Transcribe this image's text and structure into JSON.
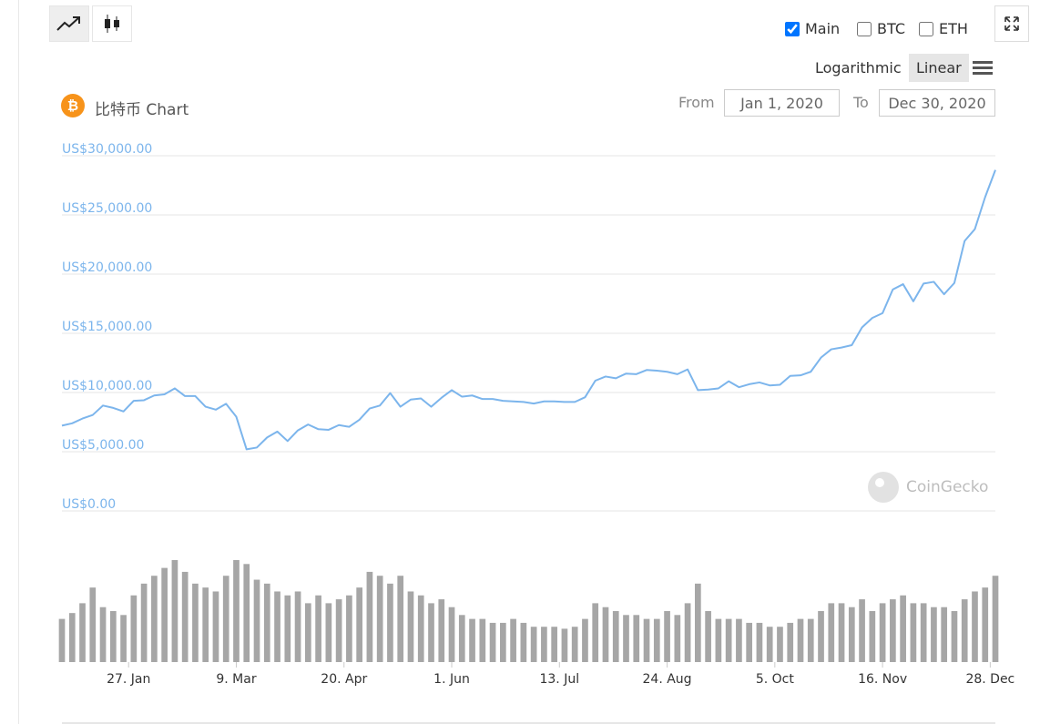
{
  "controls": {
    "checkboxes": [
      {
        "label": "Main",
        "checked": true
      },
      {
        "label": "BTC",
        "checked": false
      },
      {
        "label": "ETH",
        "checked": false
      }
    ],
    "scale_buttons": [
      "Logarithmic",
      "Linear"
    ],
    "active_scale": "Linear",
    "from_label": "From",
    "from_value": "Jan 1, 2020",
    "to_label": "To",
    "to_value": "Dec 30, 2020",
    "watermark": "CoinGecko"
  },
  "chart_data": {
    "type": "line",
    "title": "比特币 Chart",
    "x": [
      "2020-01-01",
      "2020-01-05",
      "2020-01-09",
      "2020-01-13",
      "2020-01-17",
      "2020-01-21",
      "2020-01-25",
      "2020-01-29",
      "2020-02-02",
      "2020-02-06",
      "2020-02-10",
      "2020-02-14",
      "2020-02-18",
      "2020-02-22",
      "2020-02-26",
      "2020-03-01",
      "2020-03-05",
      "2020-03-09",
      "2020-03-13",
      "2020-03-17",
      "2020-03-21",
      "2020-03-25",
      "2020-03-29",
      "2020-04-02",
      "2020-04-06",
      "2020-04-10",
      "2020-04-14",
      "2020-04-18",
      "2020-04-22",
      "2020-04-26",
      "2020-04-30",
      "2020-05-04",
      "2020-05-08",
      "2020-05-12",
      "2020-05-16",
      "2020-05-20",
      "2020-05-24",
      "2020-05-28",
      "2020-06-01",
      "2020-06-05",
      "2020-06-09",
      "2020-06-13",
      "2020-06-17",
      "2020-06-21",
      "2020-06-25",
      "2020-06-29",
      "2020-07-03",
      "2020-07-07",
      "2020-07-11",
      "2020-07-15",
      "2020-07-19",
      "2020-07-23",
      "2020-07-27",
      "2020-07-31",
      "2020-08-04",
      "2020-08-08",
      "2020-08-12",
      "2020-08-16",
      "2020-08-20",
      "2020-08-24",
      "2020-08-28",
      "2020-09-01",
      "2020-09-05",
      "2020-09-09",
      "2020-09-13",
      "2020-09-17",
      "2020-09-21",
      "2020-09-25",
      "2020-09-29",
      "2020-10-03",
      "2020-10-07",
      "2020-10-11",
      "2020-10-15",
      "2020-10-19",
      "2020-10-23",
      "2020-10-27",
      "2020-10-31",
      "2020-11-04",
      "2020-11-08",
      "2020-11-12",
      "2020-11-16",
      "2020-11-20",
      "2020-11-24",
      "2020-11-28",
      "2020-12-02",
      "2020-12-06",
      "2020-12-10",
      "2020-12-14",
      "2020-12-18",
      "2020-12-22",
      "2020-12-26",
      "2020-12-30"
    ],
    "series": [
      {
        "type": "line",
        "color": "#7cb5ec",
        "values": [
          7200,
          7400,
          7800,
          8100,
          8900,
          8700,
          8400,
          9300,
          9350,
          9750,
          9850,
          10350,
          9700,
          9700,
          8800,
          8550,
          9050,
          7950,
          5200,
          5350,
          6200,
          6700,
          5900,
          6800,
          7300,
          6900,
          6850,
          7250,
          7100,
          7700,
          8650,
          8900,
          9950,
          8800,
          9400,
          9500,
          8800,
          9550,
          10200,
          9650,
          9750,
          9450,
          9450,
          9300,
          9250,
          9200,
          9070,
          9250,
          9250,
          9200,
          9200,
          9600,
          11000,
          11350,
          11200,
          11600,
          11550,
          11900,
          11850,
          11750,
          11550,
          11950,
          10200,
          10250,
          10350,
          10950,
          10450,
          10700,
          10850,
          10600,
          10650,
          11400,
          11450,
          11750,
          12950,
          13650,
          13800,
          14000,
          15500,
          16300,
          16700,
          18700,
          19150,
          17700,
          19200,
          19350,
          18300,
          19250,
          22800,
          23800,
          26500,
          28800
        ]
      },
      {
        "type": "column",
        "color": "#a6a6a6",
        "values": [
          22,
          25,
          30,
          38,
          28,
          26,
          24,
          34,
          40,
          44,
          48,
          52,
          46,
          40,
          38,
          36,
          44,
          52,
          50,
          42,
          40,
          36,
          34,
          36,
          30,
          34,
          30,
          32,
          34,
          38,
          46,
          44,
          40,
          44,
          36,
          34,
          30,
          32,
          28,
          24,
          22,
          22,
          20,
          20,
          22,
          20,
          18,
          18,
          18,
          17,
          18,
          22,
          30,
          28,
          26,
          24,
          24,
          22,
          22,
          26,
          24,
          30,
          40,
          26,
          22,
          22,
          22,
          20,
          20,
          18,
          18,
          20,
          22,
          22,
          26,
          30,
          30,
          28,
          32,
          26,
          30,
          32,
          34,
          30,
          30,
          28,
          28,
          26,
          32,
          36,
          38,
          44
        ]
      }
    ],
    "xlim": [
      "2020-01-01",
      "2020-12-30"
    ],
    "xticks": [
      {
        "value": "2020-01-27",
        "label": "27. Jan"
      },
      {
        "value": "2020-03-09",
        "label": "9. Mar"
      },
      {
        "value": "2020-04-20",
        "label": "20. Apr"
      },
      {
        "value": "2020-06-01",
        "label": "1. Jun"
      },
      {
        "value": "2020-07-13",
        "label": "13. Jul"
      },
      {
        "value": "2020-08-24",
        "label": "24. Aug"
      },
      {
        "value": "2020-10-05",
        "label": "5. Oct"
      },
      {
        "value": "2020-11-16",
        "label": "16. Nov"
      },
      {
        "value": "2020-12-28",
        "label": "28. Dec"
      }
    ],
    "ylim": [
      0,
      30000
    ],
    "yticks": [
      {
        "value": 0,
        "label": "US$0.00"
      },
      {
        "value": 5000,
        "label": "US$5,000.00"
      },
      {
        "value": 10000,
        "label": "US$10,000.00"
      },
      {
        "value": 15000,
        "label": "US$15,000.00"
      },
      {
        "value": 20000,
        "label": "US$20,000.00"
      },
      {
        "value": 25000,
        "label": "US$25,000.00"
      },
      {
        "value": 30000,
        "label": "US$30,000.00"
      }
    ],
    "grid": true
  }
}
